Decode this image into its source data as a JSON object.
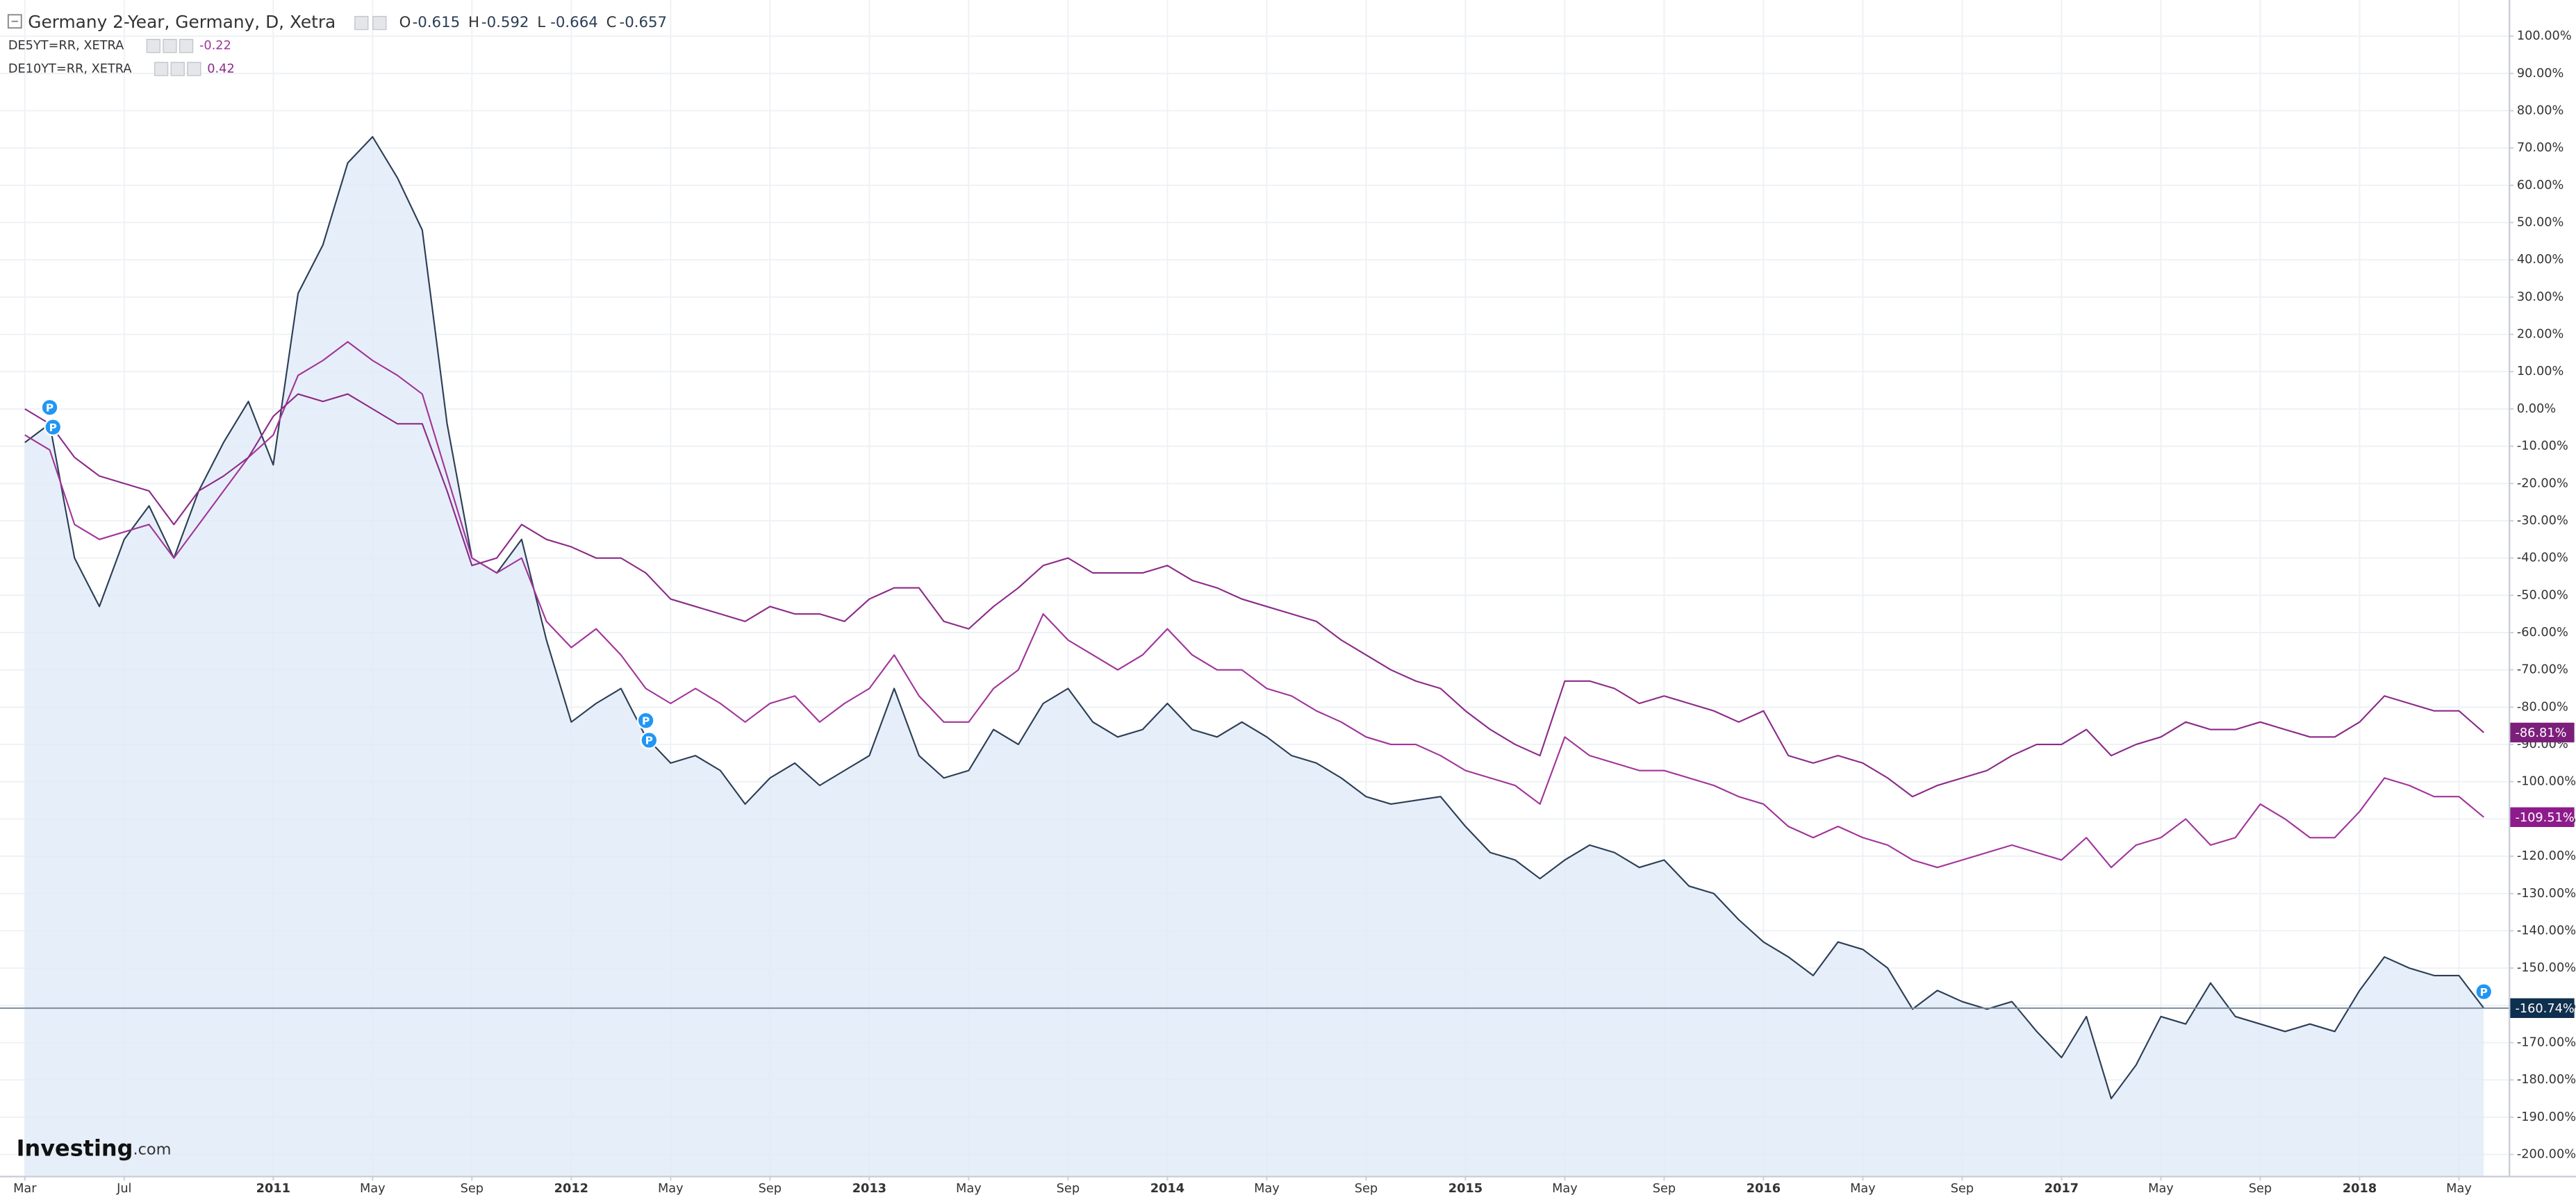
{
  "chart_data": {
    "type": "line",
    "title": "Germany 2-Year, Germany, D, Xetra",
    "ohlc": [
      {
        "label": "O",
        "value": -0.615
      },
      {
        "label": "H",
        "value": -0.592
      },
      {
        "label": "L",
        "value": -0.664
      },
      {
        "label": "C",
        "value": -0.657
      }
    ],
    "watermark": {
      "brand": "Investing",
      "suffix": ".com"
    },
    "grid": true,
    "area_fill": "#dde9f7",
    "price_line_color": "#758696",
    "x": [
      "2010-03",
      "2010-04",
      "2010-05",
      "2010-06",
      "2010-07",
      "2010-08",
      "2010-09",
      "2010-10",
      "2010-11",
      "2010-12",
      "2011-01",
      "2011-02",
      "2011-03",
      "2011-04",
      "2011-05",
      "2011-06",
      "2011-07",
      "2011-08",
      "2011-09",
      "2011-10",
      "2011-11",
      "2011-12",
      "2012-01",
      "2012-02",
      "2012-03",
      "2012-04",
      "2012-05",
      "2012-06",
      "2012-07",
      "2012-08",
      "2012-09",
      "2012-10",
      "2012-11",
      "2012-12",
      "2013-01",
      "2013-02",
      "2013-03",
      "2013-04",
      "2013-05",
      "2013-06",
      "2013-07",
      "2013-08",
      "2013-09",
      "2013-10",
      "2013-11",
      "2013-12",
      "2014-01",
      "2014-02",
      "2014-03",
      "2014-04",
      "2014-05",
      "2014-06",
      "2014-07",
      "2014-08",
      "2014-09",
      "2014-10",
      "2014-11",
      "2014-12",
      "2015-01",
      "2015-02",
      "2015-03",
      "2015-04",
      "2015-05",
      "2015-06",
      "2015-07",
      "2015-08",
      "2015-09",
      "2015-10",
      "2015-11",
      "2015-12",
      "2016-01",
      "2016-02",
      "2016-03",
      "2016-04",
      "2016-05",
      "2016-06",
      "2016-07",
      "2016-08",
      "2016-09",
      "2016-10",
      "2016-11",
      "2016-12",
      "2017-01",
      "2017-02",
      "2017-03",
      "2017-04",
      "2017-05",
      "2017-06",
      "2017-07",
      "2017-08",
      "2017-09",
      "2017-10",
      "2017-11",
      "2017-12",
      "2018-01",
      "2018-02",
      "2018-03",
      "2018-04",
      "2018-05",
      "2018-06"
    ],
    "xlim": [
      "2010-02",
      "2018-07"
    ],
    "xticks": [
      {
        "value": "2010-03",
        "label": "Mar"
      },
      {
        "value": "2010-07",
        "label": "Jul"
      },
      {
        "value": "2011-01",
        "label": "2011"
      },
      {
        "value": "2011-05",
        "label": "May"
      },
      {
        "value": "2011-09",
        "label": "Sep"
      },
      {
        "value": "2012-01",
        "label": "2012"
      },
      {
        "value": "2012-05",
        "label": "May"
      },
      {
        "value": "2012-09",
        "label": "Sep"
      },
      {
        "value": "2013-01",
        "label": "2013"
      },
      {
        "value": "2013-05",
        "label": "May"
      },
      {
        "value": "2013-09",
        "label": "Sep"
      },
      {
        "value": "2014-01",
        "label": "2014"
      },
      {
        "value": "2014-05",
        "label": "May"
      },
      {
        "value": "2014-09",
        "label": "Sep"
      },
      {
        "value": "2015-01",
        "label": "2015"
      },
      {
        "value": "2015-05",
        "label": "May"
      },
      {
        "value": "2015-09",
        "label": "Sep"
      },
      {
        "value": "2016-01",
        "label": "2016"
      },
      {
        "value": "2016-05",
        "label": "May"
      },
      {
        "value": "2016-09",
        "label": "Sep"
      },
      {
        "value": "2017-01",
        "label": "2017"
      },
      {
        "value": "2017-05",
        "label": "May"
      },
      {
        "value": "2017-09",
        "label": "Sep"
      },
      {
        "value": "2018-01",
        "label": "2018"
      },
      {
        "value": "2018-05",
        "label": "May"
      }
    ],
    "ylim": [
      -205.7,
      109.7
    ],
    "yticks": [
      {
        "value": 100,
        "label": "100.00%"
      },
      {
        "value": 90,
        "label": "90.00%"
      },
      {
        "value": 80,
        "label": "80.00%"
      },
      {
        "value": 70,
        "label": "70.00%"
      },
      {
        "value": 60,
        "label": "60.00%"
      },
      {
        "value": 50,
        "label": "50.00%"
      },
      {
        "value": 40,
        "label": "40.00%"
      },
      {
        "value": 30,
        "label": "30.00%"
      },
      {
        "value": 20,
        "label": "20.00%"
      },
      {
        "value": 10,
        "label": "10.00%"
      },
      {
        "value": 0,
        "label": "0.00%"
      },
      {
        "value": -10,
        "label": "-10.00%"
      },
      {
        "value": -20,
        "label": "-20.00%"
      },
      {
        "value": -30,
        "label": "-30.00%"
      },
      {
        "value": -40,
        "label": "-40.00%"
      },
      {
        "value": -50,
        "label": "-50.00%"
      },
      {
        "value": -60,
        "label": "-60.00%"
      },
      {
        "value": -70,
        "label": "-70.00%"
      },
      {
        "value": -80,
        "label": "-80.00%"
      },
      {
        "value": -90,
        "label": "-90.00%"
      },
      {
        "value": -100,
        "label": "-100.00%"
      },
      {
        "value": -110,
        "label": "-110.00%"
      },
      {
        "value": -120,
        "label": "-120.00%"
      },
      {
        "value": -130,
        "label": "-130.00%"
      },
      {
        "value": -140,
        "label": "-140.00%"
      },
      {
        "value": -150,
        "label": "-150.00%"
      },
      {
        "value": -160,
        "label": "-160.00%"
      },
      {
        "value": -170,
        "label": "-170.00%"
      },
      {
        "value": -180,
        "label": "-180.00%"
      },
      {
        "value": -190,
        "label": "-190.00%"
      },
      {
        "value": -200,
        "label": "-200.00%"
      }
    ],
    "series": [
      {
        "name": "Germany 2-Year",
        "color": "#2c3e55",
        "tag_color": "#0f2f4f",
        "last_value_label": "-160.74%",
        "values": [
          -9,
          -4,
          -40,
          -53,
          -35,
          -26,
          -40,
          -22,
          -9,
          2,
          -15,
          31,
          44,
          66,
          73,
          62,
          48,
          -4,
          -40,
          -44,
          -35,
          -62,
          -84,
          -79,
          -75,
          -88,
          -95,
          -93,
          -97,
          -106,
          -99,
          -95,
          -101,
          -97,
          -93,
          -75,
          -93,
          -99,
          -97,
          -86,
          -90,
          -79,
          -75,
          -84,
          -88,
          -86,
          -79,
          -86,
          -88,
          -84,
          -88,
          -93,
          -95,
          -99,
          -104,
          -106,
          -105,
          -104,
          -112,
          -119,
          -121,
          -126,
          -121,
          -117,
          -119,
          -123,
          -121,
          -128,
          -130,
          -137,
          -143,
          -147,
          -152,
          -143,
          -145,
          -150,
          -161,
          -156,
          -159,
          -161,
          -159,
          -167,
          -174,
          -163,
          -185,
          -176,
          -163,
          -165,
          -154,
          -163,
          -165,
          -167,
          -165,
          -167,
          -156,
          -147,
          -150,
          -152,
          -152,
          -160.74
        ]
      },
      {
        "name": "DE5YT=RR, XETRA",
        "legend_value": -0.22,
        "color": "#a2349a",
        "tag_color": "#8e1b8c",
        "last_value_label": "-109.51%",
        "values": [
          -7,
          -11,
          -31,
          -35,
          -33,
          -31,
          -40,
          -31,
          -22,
          -13,
          -7,
          9,
          13,
          18,
          13,
          9,
          4,
          -18,
          -40,
          -44,
          -40,
          -57,
          -64,
          -59,
          -66,
          -75,
          -79,
          -75,
          -79,
          -84,
          -79,
          -77,
          -84,
          -79,
          -75,
          -66,
          -77,
          -84,
          -84,
          -75,
          -70,
          -55,
          -62,
          -66,
          -70,
          -66,
          -59,
          -66,
          -70,
          -70,
          -75,
          -77,
          -81,
          -84,
          -88,
          -90,
          -90,
          -93,
          -97,
          -99,
          -101,
          -106,
          -88,
          -93,
          -95,
          -97,
          -97,
          -99,
          -101,
          -104,
          -106,
          -112,
          -115,
          -112,
          -115,
          -117,
          -121,
          -123,
          -121,
          -119,
          -117,
          -119,
          -121,
          -115,
          -123,
          -117,
          -115,
          -110,
          -117,
          -115,
          -106,
          -110,
          -115,
          -115,
          -108,
          -99,
          -101,
          -104,
          -104,
          -109.51
        ]
      },
      {
        "name": "DE10YT=RR, XETRA",
        "legend_value": 0.42,
        "color": "#8c2a88",
        "tag_color": "#7b1f7b",
        "last_value_label": "-86.81%",
        "values": [
          0,
          -4,
          -13,
          -18,
          -20,
          -22,
          -31,
          -22,
          -18,
          -13,
          -2,
          4,
          2,
          4,
          0,
          -4,
          -4,
          -22,
          -42,
          -40,
          -31,
          -35,
          -37,
          -40,
          -40,
          -44,
          -51,
          -53,
          -55,
          -57,
          -53,
          -55,
          -55,
          -57,
          -51,
          -48,
          -48,
          -57,
          -59,
          -53,
          -48,
          -42,
          -40,
          -44,
          -44,
          -44,
          -42,
          -46,
          -48,
          -51,
          -53,
          -55,
          -57,
          -62,
          -66,
          -70,
          -73,
          -75,
          -81,
          -86,
          -90,
          -93,
          -73,
          -73,
          -75,
          -79,
          -77,
          -79,
          -81,
          -84,
          -81,
          -93,
          -95,
          -93,
          -95,
          -99,
          -104,
          -101,
          -99,
          -97,
          -93,
          -90,
          -90,
          -86,
          -93,
          -90,
          -88,
          -84,
          -86,
          -86,
          -84,
          -86,
          -88,
          -88,
          -84,
          -77,
          -79,
          -81,
          -81,
          -86.81
        ]
      }
    ],
    "events": [
      {
        "x": "2010-04",
        "label": "P"
      },
      {
        "x": "2010-04",
        "label": "P"
      },
      {
        "x": "2012-04",
        "label": "P"
      },
      {
        "x": "2012-04",
        "label": "P"
      },
      {
        "x": "2018-06",
        "label": "P"
      }
    ]
  }
}
